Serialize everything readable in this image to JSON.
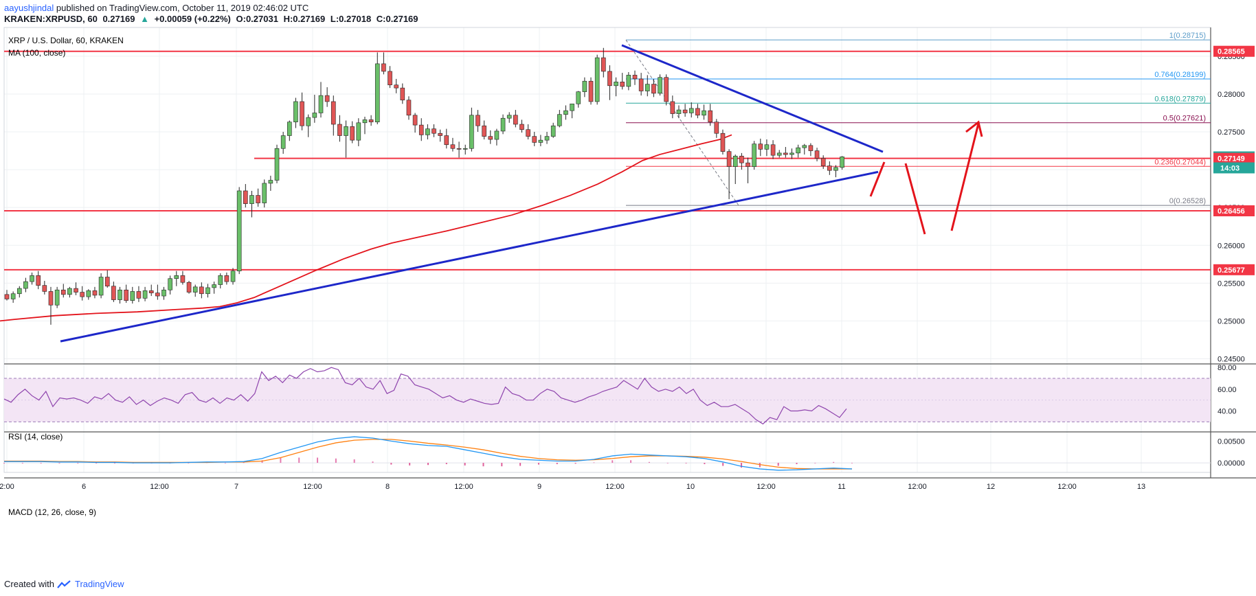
{
  "header": {
    "publisher": "aayushjindal",
    "published_text": "published on TradingView.com, October 11, 2019 02:46:02 UTC",
    "symbol": "KRAKEN:XRPUSD, 60",
    "last": "0.27169",
    "change_arrow": "▲",
    "change": "+0.00059 (+0.22%)",
    "open": "O:0.27031",
    "high": "H:0.27169",
    "low": "L:0.27018",
    "close": "C:0.27169"
  },
  "footer": {
    "created_with": "Created with",
    "brand": "TradingView"
  },
  "chart_data": {
    "type": "candlestick",
    "title": "XRP / U.S. Dollar, 60, KRAKEN",
    "indicator_label": "MA (100, close)",
    "ylim": [
      0.2445,
      0.2888
    ],
    "y_ticks": [
      "0.28500",
      "0.28000",
      "0.27500",
      "0.27000",
      "0.26500",
      "0.26000",
      "0.25500",
      "0.25000",
      "0.24500"
    ],
    "x_ticks": [
      "2:00",
      "6",
      "12:00",
      "7",
      "12:00",
      "8",
      "12:00",
      "9",
      "12:00",
      "10",
      "12:00",
      "11",
      "12:00",
      "12",
      "12:00",
      "13"
    ],
    "candles": [
      [
        0.2535,
        0.2541,
        0.2527,
        0.2529
      ],
      [
        0.2529,
        0.2539,
        0.2524,
        0.2536
      ],
      [
        0.2536,
        0.2546,
        0.2531,
        0.2543
      ],
      [
        0.2543,
        0.2557,
        0.2538,
        0.2552
      ],
      [
        0.2552,
        0.2564,
        0.2548,
        0.256
      ],
      [
        0.256,
        0.2566,
        0.2542,
        0.2547
      ],
      [
        0.2547,
        0.2553,
        0.2535,
        0.2539
      ],
      [
        0.2539,
        0.2545,
        0.2495,
        0.2521
      ],
      [
        0.2521,
        0.2545,
        0.2517,
        0.2541
      ],
      [
        0.2541,
        0.2549,
        0.2531,
        0.2535
      ],
      [
        0.2535,
        0.2545,
        0.2531,
        0.2543
      ],
      [
        0.2543,
        0.2551,
        0.2534,
        0.2538
      ],
      [
        0.2538,
        0.2546,
        0.2527,
        0.2532
      ],
      [
        0.2532,
        0.2542,
        0.2528,
        0.254
      ],
      [
        0.254,
        0.2545,
        0.253,
        0.2534
      ],
      [
        0.2534,
        0.2563,
        0.253,
        0.2558
      ],
      [
        0.2558,
        0.2567,
        0.2544,
        0.2546
      ],
      [
        0.2546,
        0.2552,
        0.2525,
        0.2528
      ],
      [
        0.2528,
        0.2545,
        0.2523,
        0.2541
      ],
      [
        0.2541,
        0.2548,
        0.2524,
        0.2527
      ],
      [
        0.2527,
        0.2545,
        0.2523,
        0.2539
      ],
      [
        0.2539,
        0.2546,
        0.2525,
        0.253
      ],
      [
        0.253,
        0.2545,
        0.2526,
        0.254
      ],
      [
        0.254,
        0.2548,
        0.2533,
        0.2537
      ],
      [
        0.2537,
        0.2548,
        0.2528,
        0.2533
      ],
      [
        0.2533,
        0.2545,
        0.2528,
        0.2541
      ],
      [
        0.2541,
        0.256,
        0.2535,
        0.2556
      ],
      [
        0.2556,
        0.2566,
        0.2546,
        0.256
      ],
      [
        0.256,
        0.2566,
        0.2548,
        0.2551
      ],
      [
        0.2551,
        0.2553,
        0.2536,
        0.2538
      ],
      [
        0.2538,
        0.2548,
        0.2532,
        0.2545
      ],
      [
        0.2545,
        0.2551,
        0.253,
        0.2536
      ],
      [
        0.2536,
        0.2549,
        0.2531,
        0.2544
      ],
      [
        0.2544,
        0.2552,
        0.2536,
        0.2548
      ],
      [
        0.2548,
        0.2563,
        0.2543,
        0.256
      ],
      [
        0.256,
        0.2564,
        0.2548,
        0.2552
      ],
      [
        0.2552,
        0.257,
        0.2548,
        0.2566
      ],
      [
        0.2566,
        0.2677,
        0.2562,
        0.2672
      ],
      [
        0.2672,
        0.2681,
        0.265,
        0.2655
      ],
      [
        0.2655,
        0.2672,
        0.2637,
        0.2666
      ],
      [
        0.2666,
        0.2675,
        0.2651,
        0.2656
      ],
      [
        0.2656,
        0.2687,
        0.265,
        0.2682
      ],
      [
        0.2682,
        0.2692,
        0.2672,
        0.2686
      ],
      [
        0.2686,
        0.2733,
        0.2682,
        0.2728
      ],
      [
        0.2728,
        0.275,
        0.2721,
        0.2745
      ],
      [
        0.2745,
        0.2765,
        0.2738,
        0.2763
      ],
      [
        0.2763,
        0.2795,
        0.2755,
        0.279
      ],
      [
        0.279,
        0.2802,
        0.2752,
        0.2758
      ],
      [
        0.2758,
        0.2773,
        0.2743,
        0.2769
      ],
      [
        0.2769,
        0.2799,
        0.2762,
        0.2775
      ],
      [
        0.2775,
        0.2816,
        0.2769,
        0.2798
      ],
      [
        0.2798,
        0.2809,
        0.2783,
        0.279
      ],
      [
        0.279,
        0.2798,
        0.2745,
        0.276
      ],
      [
        0.276,
        0.2772,
        0.2737,
        0.2745
      ],
      [
        0.2745,
        0.2765,
        0.2716,
        0.2757
      ],
      [
        0.2757,
        0.2764,
        0.2735,
        0.2739
      ],
      [
        0.2739,
        0.2768,
        0.2731,
        0.2762
      ],
      [
        0.2762,
        0.277,
        0.2747,
        0.2766
      ],
      [
        0.2766,
        0.2772,
        0.2758,
        0.2763
      ],
      [
        0.2763,
        0.2855,
        0.276,
        0.284
      ],
      [
        0.284,
        0.2855,
        0.2826,
        0.283
      ],
      [
        0.283,
        0.2837,
        0.2808,
        0.2812
      ],
      [
        0.2812,
        0.282,
        0.2801,
        0.2808
      ],
      [
        0.2808,
        0.2814,
        0.2787,
        0.2792
      ],
      [
        0.2792,
        0.2797,
        0.2766,
        0.2772
      ],
      [
        0.2772,
        0.2775,
        0.2749,
        0.2759
      ],
      [
        0.2759,
        0.2768,
        0.2738,
        0.2746
      ],
      [
        0.2746,
        0.276,
        0.274,
        0.2754
      ],
      [
        0.2754,
        0.276,
        0.2743,
        0.2748
      ],
      [
        0.2748,
        0.2753,
        0.2737,
        0.2745
      ],
      [
        0.2745,
        0.2754,
        0.2728,
        0.2733
      ],
      [
        0.2733,
        0.2742,
        0.2724,
        0.2728
      ],
      [
        0.2728,
        0.2737,
        0.2716,
        0.2727
      ],
      [
        0.2727,
        0.2733,
        0.272,
        0.2728
      ],
      [
        0.2728,
        0.2782,
        0.2724,
        0.2772
      ],
      [
        0.2772,
        0.2779,
        0.275,
        0.2758
      ],
      [
        0.2758,
        0.2765,
        0.274,
        0.2744
      ],
      [
        0.2744,
        0.2752,
        0.2734,
        0.274
      ],
      [
        0.274,
        0.2754,
        0.2732,
        0.2751
      ],
      [
        0.2751,
        0.2773,
        0.2747,
        0.2768
      ],
      [
        0.2768,
        0.2776,
        0.2762,
        0.2772
      ],
      [
        0.2772,
        0.2779,
        0.2756,
        0.276
      ],
      [
        0.276,
        0.2766,
        0.2749,
        0.2753
      ],
      [
        0.2753,
        0.276,
        0.274,
        0.2744
      ],
      [
        0.2744,
        0.275,
        0.2731,
        0.2736
      ],
      [
        0.2736,
        0.2746,
        0.2731,
        0.2739
      ],
      [
        0.2739,
        0.275,
        0.2734,
        0.2744
      ],
      [
        0.2744,
        0.2762,
        0.2742,
        0.2758
      ],
      [
        0.2758,
        0.2779,
        0.2756,
        0.2773
      ],
      [
        0.2773,
        0.2785,
        0.2766,
        0.2778
      ],
      [
        0.2778,
        0.2787,
        0.2768,
        0.2787
      ],
      [
        0.2787,
        0.2804,
        0.2782,
        0.2803
      ],
      [
        0.2803,
        0.2822,
        0.2796,
        0.2817
      ],
      [
        0.2817,
        0.2822,
        0.2786,
        0.279
      ],
      [
        0.279,
        0.2852,
        0.2786,
        0.2848
      ],
      [
        0.2848,
        0.2861,
        0.2822,
        0.283
      ],
      [
        0.283,
        0.2838,
        0.2792,
        0.2811
      ],
      [
        0.2811,
        0.2822,
        0.2797,
        0.2816
      ],
      [
        0.2816,
        0.2828,
        0.2806,
        0.281
      ],
      [
        0.281,
        0.2829,
        0.2805,
        0.2825
      ],
      [
        0.2825,
        0.2831,
        0.2812,
        0.282
      ],
      [
        0.282,
        0.2828,
        0.2798,
        0.2804
      ],
      [
        0.2804,
        0.2825,
        0.2797,
        0.2813
      ],
      [
        0.2813,
        0.282,
        0.2796,
        0.2801
      ],
      [
        0.2801,
        0.2826,
        0.2798,
        0.2822
      ],
      [
        0.2822,
        0.2826,
        0.2785,
        0.279
      ],
      [
        0.279,
        0.2798,
        0.2768,
        0.2774
      ],
      [
        0.2774,
        0.2785,
        0.2768,
        0.2779
      ],
      [
        0.2779,
        0.2787,
        0.277,
        0.2775
      ],
      [
        0.2775,
        0.2789,
        0.2769,
        0.2781
      ],
      [
        0.2781,
        0.2787,
        0.2768,
        0.2772
      ],
      [
        0.2772,
        0.2786,
        0.2766,
        0.2778
      ],
      [
        0.2778,
        0.2787,
        0.2758,
        0.2763
      ],
      [
        0.2763,
        0.2767,
        0.2742,
        0.2748
      ],
      [
        0.2748,
        0.2753,
        0.272,
        0.2724
      ],
      [
        0.2724,
        0.2727,
        0.2661,
        0.2704
      ],
      [
        0.2704,
        0.272,
        0.2681,
        0.2718
      ],
      [
        0.2718,
        0.2722,
        0.27,
        0.2709
      ],
      [
        0.2709,
        0.2716,
        0.2682,
        0.2704
      ],
      [
        0.2704,
        0.2738,
        0.27,
        0.2734
      ],
      [
        0.2734,
        0.2741,
        0.2718,
        0.2727
      ],
      [
        0.2727,
        0.274,
        0.2718,
        0.2733
      ],
      [
        0.2733,
        0.2739,
        0.2714,
        0.2719
      ],
      [
        0.2719,
        0.2726,
        0.2716,
        0.2722
      ],
      [
        0.2722,
        0.273,
        0.2716,
        0.272
      ],
      [
        0.272,
        0.2728,
        0.2714,
        0.2722
      ],
      [
        0.2722,
        0.2733,
        0.2716,
        0.2729
      ],
      [
        0.2729,
        0.2734,
        0.272,
        0.2732
      ],
      [
        0.2732,
        0.2735,
        0.2718,
        0.2725
      ],
      [
        0.2725,
        0.2729,
        0.2711,
        0.2715
      ],
      [
        0.2715,
        0.2719,
        0.2701,
        0.2705
      ],
      [
        0.2705,
        0.2711,
        0.2693,
        0.2699
      ],
      [
        0.2699,
        0.2706,
        0.269,
        0.2703
      ],
      [
        0.2703,
        0.2718,
        0.27,
        0.2717
      ]
    ],
    "ma_100": [
      [
        0,
        0.25
      ],
      [
        20,
        0.2502
      ],
      [
        80,
        0.2507
      ],
      [
        140,
        0.251
      ],
      [
        200,
        0.2512
      ],
      [
        255,
        0.2515
      ],
      [
        295,
        0.2517
      ],
      [
        320,
        0.2519
      ],
      [
        345,
        0.2524
      ],
      [
        370,
        0.2531
      ],
      [
        400,
        0.2543
      ],
      [
        430,
        0.2555
      ],
      [
        460,
        0.2567
      ],
      [
        500,
        0.2582
      ],
      [
        540,
        0.2595
      ],
      [
        570,
        0.2603
      ],
      [
        610,
        0.2611
      ],
      [
        650,
        0.2619
      ],
      [
        700,
        0.263
      ],
      [
        745,
        0.264
      ],
      [
        790,
        0.2653
      ],
      [
        830,
        0.2666
      ],
      [
        870,
        0.2681
      ],
      [
        905,
        0.2697
      ],
      [
        935,
        0.2712
      ],
      [
        960,
        0.272
      ],
      [
        990,
        0.2727
      ],
      [
        1020,
        0.2734
      ],
      [
        1048,
        0.274
      ],
      [
        1065,
        0.2746
      ]
    ],
    "price_labels": [
      {
        "value": 0.28565,
        "label": "0.28565",
        "color": "#f23645"
      },
      {
        "value": 0.27169,
        "label": "0.27169",
        "color": "#26a69a"
      },
      {
        "value": 0.27149,
        "label": "0.27149",
        "color": "#f23645"
      },
      {
        "value": 0.26456,
        "label": "0.26456",
        "color": "#f23645"
      },
      {
        "value": 0.25677,
        "label": "0.25677",
        "color": "#f23645"
      }
    ],
    "countdown_label": "14:03",
    "horizontal_levels": [
      0.28565,
      0.27149,
      0.26456,
      0.25677
    ],
    "fib": [
      {
        "ratio_label": "1(0.28715)",
        "value": 0.28715,
        "color": "#5b9cc9"
      },
      {
        "ratio_label": "0.764(0.28199)",
        "value": 0.28199,
        "color": "#2196f3"
      },
      {
        "ratio_label": "0.618(0.27879)",
        "value": 0.27879,
        "color": "#26a69a"
      },
      {
        "ratio_label": "0.5(0.27621)",
        "value": 0.27621,
        "color": "#880e4f"
      },
      {
        "ratio_label": "0.236(0.27044)",
        "value": 0.27044,
        "color": "#f23645"
      },
      {
        "ratio_label": "0(0.26528)",
        "value": 0.26528,
        "color": "#787b86"
      }
    ],
    "rsi": {
      "label": "RSI (14, close)",
      "ticks": [
        "80.00",
        "60.00",
        "40.00"
      ],
      "ylim": [
        22,
        82
      ],
      "values": [
        51,
        48,
        55,
        60,
        54,
        50,
        58,
        44,
        52,
        51,
        52,
        50,
        47,
        53,
        51,
        56,
        50,
        48,
        53,
        46,
        50,
        45,
        49,
        52,
        50,
        47,
        55,
        57,
        50,
        48,
        52,
        47,
        52,
        50,
        55,
        49,
        56,
        76,
        68,
        72,
        66,
        73,
        70,
        76,
        79,
        76,
        77,
        80,
        78,
        66,
        64,
        70,
        62,
        60,
        68,
        56,
        59,
        74,
        72,
        64,
        62,
        60,
        56,
        52,
        54,
        50,
        48,
        51,
        49,
        47,
        46,
        47,
        62,
        56,
        54,
        50,
        50,
        56,
        60,
        58,
        52,
        50,
        48,
        50,
        53,
        55,
        58,
        60,
        62,
        68,
        64,
        60,
        70,
        62,
        58,
        60,
        58,
        62,
        56,
        60,
        50,
        45,
        48,
        44,
        44,
        46,
        42,
        38,
        32,
        28,
        34,
        32,
        44,
        40,
        40,
        41,
        40,
        45,
        42,
        38,
        34,
        42
      ]
    },
    "macd": {
      "label": "MACD (12, 26, close, 9)",
      "ticks": [
        "0.00500",
        "0.00000"
      ],
      "ylim": [
        -0.0022,
        0.0068
      ],
      "macd_line": [
        0.0003,
        0.0003,
        0.0003,
        0.0002,
        0.0002,
        0.0001,
        0.0001,
        0.0,
        0.0,
        0.0,
        0.0001,
        0.0002,
        0.0002,
        0.0003,
        0.001,
        0.0024,
        0.0036,
        0.0048,
        0.0056,
        0.006,
        0.0057,
        0.005,
        0.0044,
        0.004,
        0.0038,
        0.003,
        0.0022,
        0.0014,
        0.0008,
        0.0006,
        0.0004,
        0.0004,
        0.0008,
        0.0016,
        0.002,
        0.0018,
        0.0016,
        0.0014,
        0.001,
        0.0002,
        -0.0008,
        -0.0014,
        -0.0017,
        -0.0016,
        -0.0014,
        -0.0012,
        -0.0014
      ],
      "signal_line": [
        0.0004,
        0.0004,
        0.0004,
        0.0003,
        0.0003,
        0.0002,
        0.0002,
        0.0001,
        0.0001,
        0.0001,
        0.0001,
        0.0001,
        0.0002,
        0.0002,
        0.0004,
        0.0012,
        0.0024,
        0.0036,
        0.0046,
        0.0052,
        0.0054,
        0.0054,
        0.005,
        0.0045,
        0.0041,
        0.0036,
        0.003,
        0.0022,
        0.0015,
        0.001,
        0.0007,
        0.0006,
        0.0007,
        0.001,
        0.0014,
        0.0016,
        0.0016,
        0.0015,
        0.0013,
        0.0009,
        0.0003,
        -0.0004,
        -0.001,
        -0.0013,
        -0.0014,
        -0.0014,
        -0.0014
      ],
      "histogram": [
        -0.0001,
        -0.0001,
        -0.0001,
        -0.0001,
        -0.0001,
        -0.0001,
        -0.0001,
        -0.0001,
        -0.0001,
        -0.0001,
        0.0,
        0.0001,
        0.0,
        0.0001,
        0.0006,
        0.0012,
        0.0012,
        0.0012,
        0.001,
        0.0008,
        0.0003,
        -0.0004,
        -0.0006,
        -0.0005,
        -0.0003,
        -0.0006,
        -0.0008,
        -0.0008,
        -0.0007,
        -0.0004,
        -0.0003,
        -0.0002,
        0.0001,
        0.0006,
        0.0006,
        0.0002,
        0.0,
        -0.0001,
        -0.0003,
        -0.0007,
        -0.0011,
        -0.001,
        -0.0007,
        -0.0003,
        0.0,
        0.0002,
        0.0
      ]
    },
    "annotation_colors": {
      "trendline": "#1d27c9",
      "arrow": "#e3131b",
      "level": "#f23645"
    }
  }
}
